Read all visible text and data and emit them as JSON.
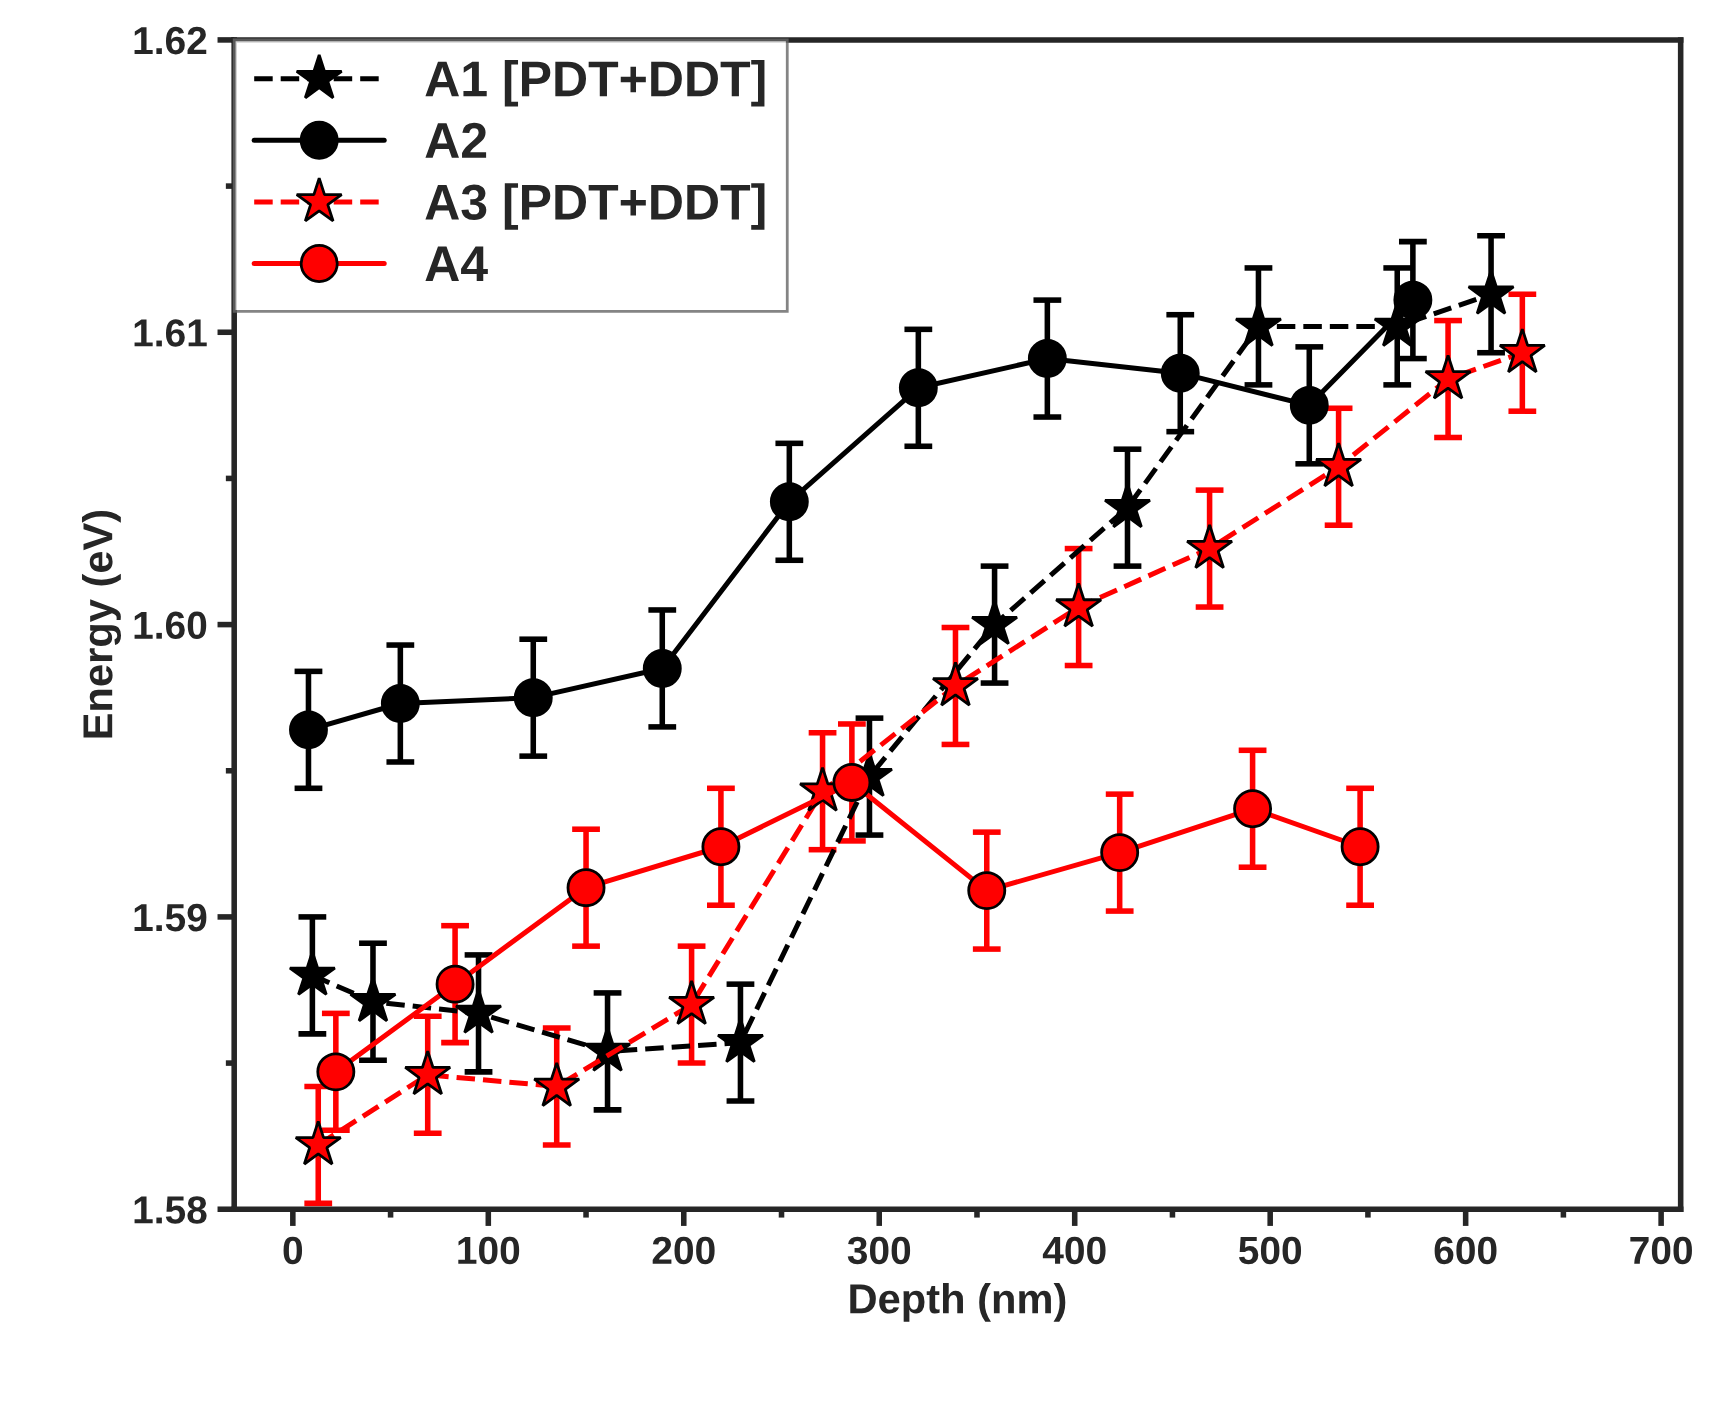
{
  "chart_data": {
    "type": "line",
    "xlabel": "Depth (nm)",
    "ylabel": "Energy (eV)",
    "xlim": [
      -30,
      710
    ],
    "ylim": [
      1.58,
      1.62
    ],
    "xticks": [
      0,
      {
        "value": 50,
        "label": null
      },
      100,
      {
        "value": 150,
        "label": null
      },
      200,
      {
        "value": 250,
        "label": null
      },
      300,
      {
        "value": 350,
        "label": null
      },
      400,
      {
        "value": 450,
        "label": null
      },
      500,
      {
        "value": 550,
        "label": null
      },
      600,
      {
        "value": 650,
        "label": null
      },
      700
    ],
    "yticks": [
      {
        "value": 1.58,
        "label": "1.58"
      },
      {
        "value": 1.585,
        "label": null
      },
      {
        "value": 1.59,
        "label": "1.59"
      },
      {
        "value": 1.595,
        "label": null
      },
      {
        "value": 1.6,
        "label": "1.60"
      },
      {
        "value": 1.605,
        "label": null
      },
      {
        "value": 1.61,
        "label": "1.61"
      },
      {
        "value": 1.615,
        "label": null
      },
      {
        "value": 1.62,
        "label": "1.62"
      }
    ],
    "grid": false,
    "legend": "top left",
    "series": [
      {
        "name": "A1 [PDT+DDT]",
        "color": "#000000",
        "marker": "star",
        "line_style": "dashed",
        "x": [
          10,
          41,
          95,
          161,
          229,
          295,
          359,
          427,
          494,
          565,
          613
        ],
        "values": [
          1.588,
          1.5871,
          1.5867,
          1.5854,
          1.5857,
          1.5948,
          1.6,
          1.604,
          1.6102,
          1.6102,
          1.6113
        ],
        "errors": [
          0.002,
          0.002,
          0.002,
          0.002,
          0.002,
          0.002,
          0.002,
          0.002,
          0.002,
          0.002,
          0.002
        ]
      },
      {
        "name": "A2",
        "color": "#000000",
        "marker": "circle",
        "line_style": "solid",
        "x": [
          8,
          55,
          123,
          189,
          254,
          320,
          386,
          454,
          520,
          573
        ],
        "values": [
          1.5964,
          1.5973,
          1.5975,
          1.5985,
          1.6042,
          1.6081,
          1.6091,
          1.6086,
          1.6075,
          1.6111
        ],
        "errors": [
          0.002,
          0.002,
          0.002,
          0.002,
          0.002,
          0.002,
          0.002,
          0.002,
          0.002,
          0.002
        ]
      },
      {
        "name": "A3 [PDT+DDT]",
        "color": "#ff0000",
        "marker": "star",
        "line_style": "dashed",
        "x": [
          13,
          69,
          135,
          204,
          271,
          339,
          402,
          469,
          535,
          591,
          629
        ],
        "values": [
          1.5822,
          1.5846,
          1.5842,
          1.587,
          1.5943,
          1.5979,
          1.6006,
          1.6026,
          1.6054,
          1.6084,
          1.6093
        ],
        "errors": [
          0.002,
          0.002,
          0.002,
          0.002,
          0.002,
          0.002,
          0.002,
          0.002,
          0.002,
          0.002,
          0.002
        ]
      },
      {
        "name": "A4",
        "color": "#ff0000",
        "marker": "circle",
        "line_style": "solid",
        "x": [
          22,
          83,
          150,
          219,
          286,
          355,
          423,
          491,
          546
        ],
        "values": [
          1.5847,
          1.5877,
          1.591,
          1.5924,
          1.5946,
          1.5909,
          1.5922,
          1.5937,
          1.5924
        ],
        "errors": [
          0.002,
          0.002,
          0.002,
          0.002,
          0.002,
          0.002,
          0.002,
          0.002,
          0.002
        ]
      }
    ]
  }
}
